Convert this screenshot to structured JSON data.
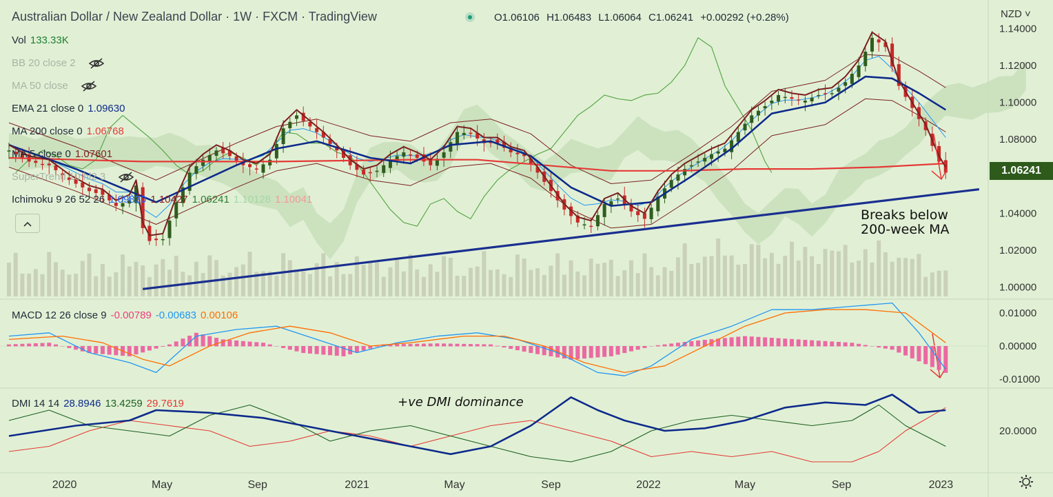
{
  "header": {
    "title": "Australian Dollar / New Zealand Dollar · 1W · FXCM · TradingView",
    "ohlc": {
      "o": "O1.06106",
      "h": "H1.06483",
      "l": "L1.06064",
      "c": "C1.06241",
      "chg": "+0.00292 (+0.28%)"
    },
    "currency_button": "NZD ˅"
  },
  "legend": {
    "vol": {
      "label": "Vol",
      "value": "133.33K"
    },
    "bb": {
      "label": "BB 20 close 2"
    },
    "ma50": {
      "label": "MA 50 close"
    },
    "ema21": {
      "label": "EMA 21 close 0",
      "value": "1.09630"
    },
    "ma200": {
      "label": "MA 200 close 0",
      "value": "1.06768"
    },
    "ma5": {
      "label": "MA 5 close 0",
      "value": "1.07601"
    },
    "supertrend": {
      "label": "SuperTrend 10 hl2 3"
    },
    "ichimoku": {
      "label": "Ichimoku 9 26 52 26",
      "v1": "1.09830",
      "v2": "1.10427",
      "v3": "1.06241",
      "v4": "1.10128",
      "v5": "1.10041"
    },
    "collapse_icon": "chevron-up-icon"
  },
  "macd_legend": {
    "label": "MACD 12 26 close 9",
    "v1": "-0.00789",
    "v2": "-0.00683",
    "v3": "0.00106"
  },
  "dmi_legend": {
    "label": "DMI 14 14",
    "v1": "28.8946",
    "v2": "13.4259",
    "v3": "29.7619"
  },
  "price_tag": "1.06241",
  "annotations": {
    "breaks": "Breaks below\n200-week MA",
    "dmi": "+ve DMI dominance"
  },
  "colors": {
    "background": "#e1f0d5",
    "up": "#2f5d1e",
    "down": "#c62828",
    "ema21": "#0d2a8a",
    "ma200": "#e53935",
    "ma5": "#7b1f1f",
    "bb": "#2196f3",
    "trendline": "#1a2f8f",
    "macd": "#2196f3",
    "signal": "#ff6d00",
    "hist": "#ec5a9c",
    "di_plus": "#1b5e20",
    "di_minus": "#e53935",
    "adx": "#0d2a8a",
    "volume": "#c6cbb4",
    "cloud": "#c4ddb7",
    "cloud_bear": "#e9c6c0",
    "arrow": "#e53935"
  },
  "chart_data": {
    "type": "candlestick",
    "price_axis": {
      "ticks": [
        "1.14000",
        "1.12000",
        "1.10000",
        "1.08000",
        "1.06000",
        "1.04000",
        "1.02000",
        "1.00000"
      ],
      "range": [
        0.995,
        1.148
      ]
    },
    "macd_axis": {
      "ticks": [
        "0.01000",
        "0.00000",
        "-0.01000"
      ]
    },
    "dmi_axis": {
      "ticks": [
        "20.0000"
      ]
    },
    "x_axis": {
      "ticks": [
        {
          "label": "2020",
          "t": 0.062
        },
        {
          "label": "May",
          "t": 0.161
        },
        {
          "label": "Sep",
          "t": 0.258
        },
        {
          "label": "2021",
          "t": 0.359
        },
        {
          "label": "May",
          "t": 0.458
        },
        {
          "label": "Sep",
          "t": 0.556
        },
        {
          "label": "2022",
          "t": 0.655
        },
        {
          "label": "May",
          "t": 0.753
        },
        {
          "label": "Sep",
          "t": 0.851
        },
        {
          "label": "2023",
          "t": 0.952
        }
      ]
    },
    "close_path": [
      [
        0,
        1.074
      ],
      [
        3,
        1.068
      ],
      [
        6,
        1.066
      ],
      [
        9,
        1.058
      ],
      [
        12,
        1.052
      ],
      [
        14,
        1.05
      ],
      [
        16,
        1.044
      ],
      [
        18,
        1.047
      ],
      [
        19,
        1.055
      ],
      [
        20,
        1.032
      ],
      [
        21,
        1.025
      ],
      [
        23,
        1.026
      ],
      [
        25,
        1.046
      ],
      [
        27,
        1.062
      ],
      [
        29,
        1.069
      ],
      [
        31,
        1.074
      ],
      [
        33,
        1.071
      ],
      [
        35,
        1.066
      ],
      [
        37,
        1.064
      ],
      [
        39,
        1.069
      ],
      [
        41,
        1.086
      ],
      [
        43,
        1.093
      ],
      [
        45,
        1.087
      ],
      [
        47,
        1.081
      ],
      [
        49,
        1.074
      ],
      [
        51,
        1.066
      ],
      [
        53,
        1.061
      ],
      [
        55,
        1.063
      ],
      [
        57,
        1.069
      ],
      [
        59,
        1.073
      ],
      [
        61,
        1.07
      ],
      [
        63,
        1.066
      ],
      [
        65,
        1.073
      ],
      [
        67,
        1.084
      ],
      [
        69,
        1.083
      ],
      [
        71,
        1.078
      ],
      [
        73,
        1.078
      ],
      [
        75,
        1.073
      ],
      [
        77,
        1.071
      ],
      [
        79,
        1.062
      ],
      [
        81,
        1.052
      ],
      [
        83,
        1.042
      ],
      [
        85,
        1.035
      ],
      [
        87,
        1.033
      ],
      [
        89,
        1.045
      ],
      [
        91,
        1.048
      ],
      [
        93,
        1.041
      ],
      [
        95,
        1.037
      ],
      [
        97,
        1.049
      ],
      [
        99,
        1.058
      ],
      [
        101,
        1.064
      ],
      [
        103,
        1.068
      ],
      [
        105,
        1.072
      ],
      [
        107,
        1.075
      ],
      [
        109,
        1.084
      ],
      [
        111,
        1.093
      ],
      [
        113,
        1.098
      ],
      [
        115,
        1.104
      ],
      [
        117,
        1.102
      ],
      [
        119,
        1.101
      ],
      [
        121,
        1.104
      ],
      [
        123,
        1.105
      ],
      [
        125,
        1.111
      ],
      [
        127,
        1.12
      ],
      [
        129,
        1.135
      ],
      [
        131,
        1.13
      ],
      [
        133,
        1.109
      ],
      [
        135,
        1.097
      ],
      [
        137,
        1.085
      ],
      [
        139,
        1.068
      ],
      [
        140,
        1.062
      ]
    ],
    "n_bars": 141,
    "ema21": [
      [
        0,
        1.077
      ],
      [
        10,
        1.064
      ],
      [
        18,
        1.052
      ],
      [
        22,
        1.046
      ],
      [
        28,
        1.056
      ],
      [
        34,
        1.066
      ],
      [
        40,
        1.075
      ],
      [
        46,
        1.079
      ],
      [
        54,
        1.07
      ],
      [
        60,
        1.067
      ],
      [
        66,
        1.077
      ],
      [
        72,
        1.079
      ],
      [
        78,
        1.071
      ],
      [
        84,
        1.054
      ],
      [
        90,
        1.044
      ],
      [
        96,
        1.046
      ],
      [
        102,
        1.06
      ],
      [
        108,
        1.075
      ],
      [
        114,
        1.094
      ],
      [
        122,
        1.1
      ],
      [
        128,
        1.114
      ],
      [
        132,
        1.113
      ],
      [
        136,
        1.105
      ],
      [
        140,
        1.096
      ]
    ],
    "ma200": [
      [
        0,
        1.07
      ],
      [
        20,
        1.068
      ],
      [
        40,
        1.068
      ],
      [
        60,
        1.069
      ],
      [
        70,
        1.069
      ],
      [
        80,
        1.066
      ],
      [
        90,
        1.063
      ],
      [
        100,
        1.063
      ],
      [
        110,
        1.064
      ],
      [
        120,
        1.064
      ],
      [
        130,
        1.065
      ],
      [
        140,
        1.067
      ]
    ],
    "trendline": [
      [
        20,
        0.999
      ],
      [
        145,
        1.053
      ]
    ],
    "macd": [
      [
        0,
        0.003
      ],
      [
        6,
        0.004
      ],
      [
        12,
        -0.002
      ],
      [
        18,
        -0.005
      ],
      [
        22,
        -0.008
      ],
      [
        28,
        0.003
      ],
      [
        34,
        0.005
      ],
      [
        40,
        0.006
      ],
      [
        46,
        0.002
      ],
      [
        52,
        -0.002
      ],
      [
        58,
        0.001
      ],
      [
        64,
        0.003
      ],
      [
        70,
        0.004
      ],
      [
        76,
        0.002
      ],
      [
        82,
        -0.002
      ],
      [
        88,
        -0.008
      ],
      [
        92,
        -0.009
      ],
      [
        96,
        -0.006
      ],
      [
        102,
        0.002
      ],
      [
        108,
        0.006
      ],
      [
        114,
        0.011
      ],
      [
        120,
        0.011
      ],
      [
        126,
        0.012
      ],
      [
        132,
        0.013
      ],
      [
        136,
        0.004
      ],
      [
        140,
        -0.007
      ]
    ],
    "signal": [
      [
        0,
        0.002
      ],
      [
        8,
        0.003
      ],
      [
        14,
        0.001
      ],
      [
        20,
        -0.004
      ],
      [
        24,
        -0.006
      ],
      [
        30,
        0.0
      ],
      [
        36,
        0.004
      ],
      [
        42,
        0.006
      ],
      [
        48,
        0.004
      ],
      [
        54,
        0.0
      ],
      [
        60,
        0.001
      ],
      [
        68,
        0.003
      ],
      [
        74,
        0.003
      ],
      [
        80,
        0.0
      ],
      [
        86,
        -0.005
      ],
      [
        92,
        -0.008
      ],
      [
        98,
        -0.006
      ],
      [
        104,
        0.0
      ],
      [
        110,
        0.006
      ],
      [
        116,
        0.01
      ],
      [
        122,
        0.011
      ],
      [
        128,
        0.011
      ],
      [
        134,
        0.01
      ],
      [
        140,
        0.001
      ]
    ],
    "hist": [
      [
        0,
        0.0005
      ],
      [
        6,
        0.001
      ],
      [
        12,
        -0.002
      ],
      [
        18,
        -0.003
      ],
      [
        24,
        0.0005
      ],
      [
        28,
        0.004
      ],
      [
        32,
        0.002
      ],
      [
        38,
        0.001
      ],
      [
        44,
        -0.002
      ],
      [
        50,
        -0.003
      ],
      [
        56,
        0.0005
      ],
      [
        64,
        0.0008
      ],
      [
        72,
        0.0005
      ],
      [
        78,
        -0.002
      ],
      [
        84,
        -0.004
      ],
      [
        90,
        -0.003
      ],
      [
        96,
        0.0
      ],
      [
        102,
        0.0015
      ],
      [
        110,
        0.003
      ],
      [
        118,
        0.002
      ],
      [
        126,
        0.001
      ],
      [
        132,
        -0.001
      ],
      [
        140,
        -0.008
      ]
    ],
    "adx": [
      [
        0,
        18
      ],
      [
        10,
        22
      ],
      [
        18,
        24
      ],
      [
        22,
        28
      ],
      [
        30,
        27
      ],
      [
        38,
        25
      ],
      [
        44,
        22
      ],
      [
        52,
        18
      ],
      [
        60,
        14
      ],
      [
        66,
        11
      ],
      [
        72,
        14
      ],
      [
        78,
        22
      ],
      [
        84,
        33
      ],
      [
        88,
        28
      ],
      [
        92,
        24
      ],
      [
        98,
        20
      ],
      [
        104,
        21
      ],
      [
        110,
        24
      ],
      [
        116,
        29
      ],
      [
        122,
        31
      ],
      [
        128,
        30
      ],
      [
        132,
        34
      ],
      [
        136,
        27
      ],
      [
        140,
        28
      ]
    ],
    "di_plus": [
      [
        0,
        24
      ],
      [
        6,
        28
      ],
      [
        12,
        22
      ],
      [
        18,
        20
      ],
      [
        24,
        18
      ],
      [
        30,
        26
      ],
      [
        36,
        30
      ],
      [
        42,
        24
      ],
      [
        48,
        16
      ],
      [
        54,
        20
      ],
      [
        60,
        22
      ],
      [
        66,
        18
      ],
      [
        72,
        14
      ],
      [
        78,
        10
      ],
      [
        84,
        8
      ],
      [
        90,
        12
      ],
      [
        96,
        20
      ],
      [
        102,
        24
      ],
      [
        108,
        26
      ],
      [
        114,
        24
      ],
      [
        120,
        22
      ],
      [
        126,
        24
      ],
      [
        130,
        30
      ],
      [
        134,
        22
      ],
      [
        140,
        14
      ]
    ],
    "di_minus": [
      [
        0,
        12
      ],
      [
        6,
        14
      ],
      [
        12,
        20
      ],
      [
        18,
        24
      ],
      [
        24,
        22
      ],
      [
        30,
        20
      ],
      [
        36,
        14
      ],
      [
        42,
        16
      ],
      [
        48,
        20
      ],
      [
        54,
        18
      ],
      [
        60,
        14
      ],
      [
        66,
        18
      ],
      [
        72,
        22
      ],
      [
        78,
        24
      ],
      [
        84,
        20
      ],
      [
        90,
        16
      ],
      [
        96,
        10
      ],
      [
        102,
        12
      ],
      [
        108,
        10
      ],
      [
        114,
        12
      ],
      [
        120,
        8
      ],
      [
        126,
        8
      ],
      [
        130,
        12
      ],
      [
        134,
        20
      ],
      [
        140,
        29
      ]
    ]
  }
}
